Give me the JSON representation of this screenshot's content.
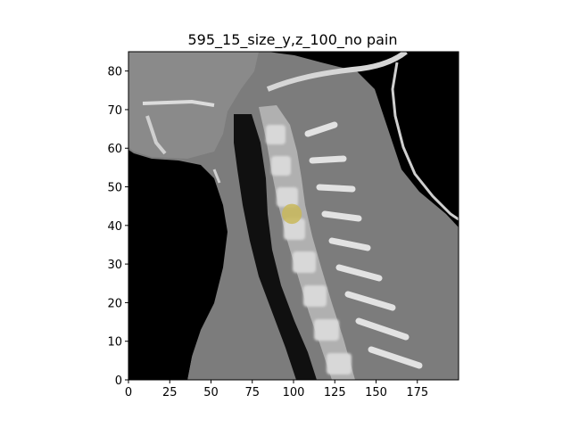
{
  "chart_data": {
    "type": "image",
    "title": "595_15_size_y,z_100_no pain",
    "xlabel": "",
    "ylabel": "",
    "xlim": [
      0,
      200
    ],
    "ylim": [
      0,
      85
    ],
    "x_ticks": [
      0,
      25,
      50,
      75,
      100,
      125,
      150,
      175
    ],
    "y_ticks": [
      0,
      10,
      20,
      30,
      40,
      50,
      60,
      70,
      80
    ],
    "image_content": "sagittal CT slice of cervical spine",
    "overlay": {
      "label": "lesion marker",
      "center_x": 99,
      "center_y": 43,
      "radius_x": 6,
      "radius_y": 2.6,
      "color": "#c9b85a"
    },
    "colors": {
      "background": "#000000",
      "tissue": "#7a7a7a",
      "bone": "#d8d8d8",
      "overlay": "#c9b85a"
    }
  }
}
